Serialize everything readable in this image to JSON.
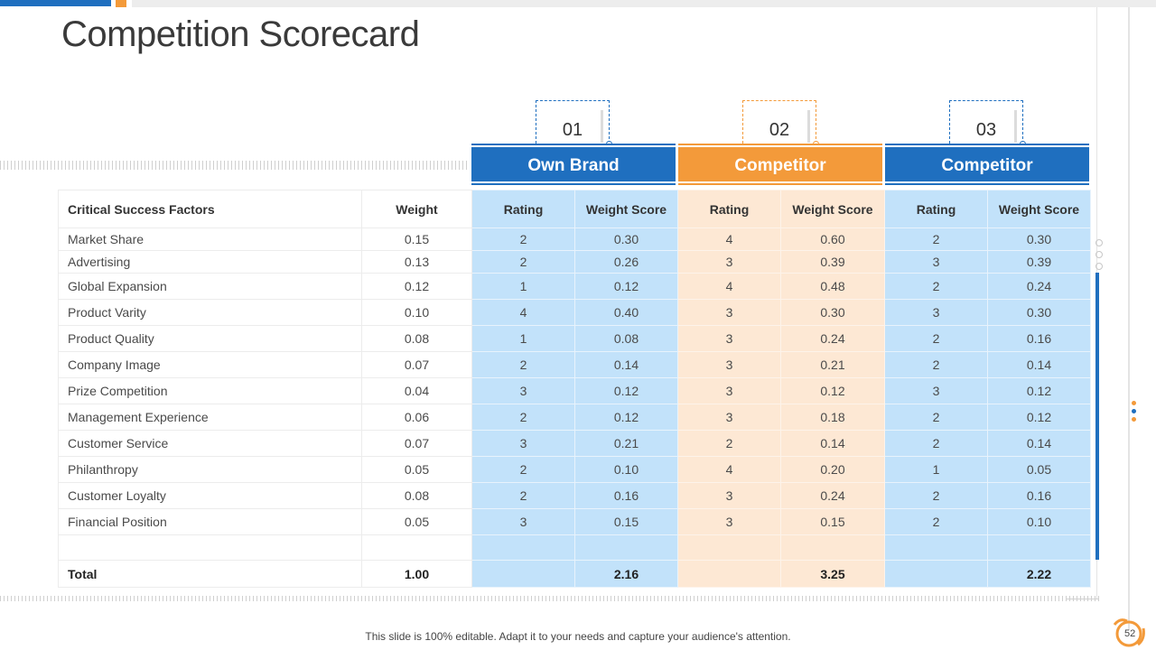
{
  "title": "Competition Scorecard",
  "groups": [
    {
      "num": "01",
      "name": "Own Brand"
    },
    {
      "num": "02",
      "name": "Competitor"
    },
    {
      "num": "03",
      "name": "Competitor"
    }
  ],
  "headers": {
    "factor": "Critical Success Factors",
    "weight": "Weight",
    "rating": "Rating",
    "wscore": "Weight Score"
  },
  "rows": [
    {
      "factor": "Market Share",
      "weight": "0.15",
      "r1": "2",
      "s1": "0.30",
      "r2": "4",
      "s2": "0.60",
      "r3": "2",
      "s3": "0.30"
    },
    {
      "factor": "Advertising",
      "weight": "0.13",
      "r1": "2",
      "s1": "0.26",
      "r2": "3",
      "s2": "0.39",
      "r3": "3",
      "s3": "0.39"
    },
    {
      "factor": "Global Expansion",
      "weight": "0.12",
      "r1": "1",
      "s1": "0.12",
      "r2": "4",
      "s2": "0.48",
      "r3": "2",
      "s3": "0.24"
    },
    {
      "factor": "Product Varity",
      "weight": "0.10",
      "r1": "4",
      "s1": "0.40",
      "r2": "3",
      "s2": "0.30",
      "r3": "3",
      "s3": "0.30"
    },
    {
      "factor": "Product Quality",
      "weight": "0.08",
      "r1": "1",
      "s1": "0.08",
      "r2": "3",
      "s2": "0.24",
      "r3": "2",
      "s3": "0.16"
    },
    {
      "factor": "Company Image",
      "weight": "0.07",
      "r1": "2",
      "s1": "0.14",
      "r2": "3",
      "s2": "0.21",
      "r3": "2",
      "s3": "0.14"
    },
    {
      "factor": "Prize Competition",
      "weight": "0.04",
      "r1": "3",
      "s1": "0.12",
      "r2": "3",
      "s2": "0.12",
      "r3": "3",
      "s3": "0.12"
    },
    {
      "factor": "Management Experience",
      "weight": "0.06",
      "r1": "2",
      "s1": "0.12",
      "r2": "3",
      "s2": "0.18",
      "r3": "2",
      "s3": "0.12"
    },
    {
      "factor": "Customer Service",
      "weight": "0.07",
      "r1": "3",
      "s1": "0.21",
      "r2": "2",
      "s2": "0.14",
      "r3": "2",
      "s3": "0.14"
    },
    {
      "factor": "Philanthropy",
      "weight": "0.05",
      "r1": "2",
      "s1": "0.10",
      "r2": "4",
      "s2": "0.20",
      "r3": "1",
      "s3": "0.05"
    },
    {
      "factor": "Customer  Loyalty",
      "weight": "0.08",
      "r1": "2",
      "s1": "0.16",
      "r2": "3",
      "s2": "0.24",
      "r3": "2",
      "s3": "0.16"
    },
    {
      "factor": "Financial Position",
      "weight": "0.05",
      "r1": "3",
      "s1": "0.15",
      "r2": "3",
      "s2": "0.15",
      "r3": "2",
      "s3": "0.10"
    }
  ],
  "total": {
    "label": "Total",
    "weight": "1.00",
    "s1": "2.16",
    "s2": "3.25",
    "s3": "2.22"
  },
  "footer": "This slide is 100% editable. Adapt it to your needs and capture your audience's attention.",
  "page_number": "52",
  "colors": {
    "blue": "#1f6fbf",
    "orange": "#f39a3a",
    "light_blue": "#c2e2fa",
    "light_orange": "#fde8d4"
  }
}
